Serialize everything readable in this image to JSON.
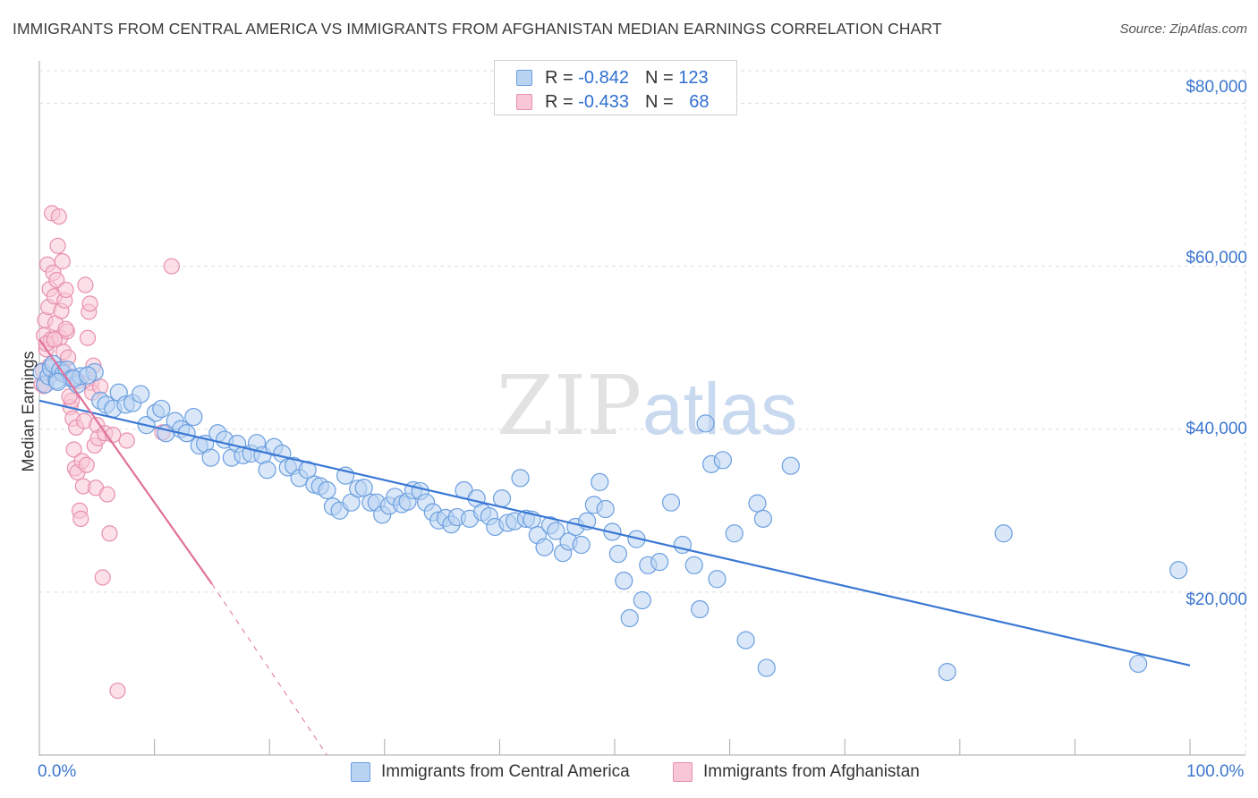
{
  "title": "IMMIGRANTS FROM CENTRAL AMERICA VS IMMIGRANTS FROM AFGHANISTAN MEDIAN EARNINGS CORRELATION CHART",
  "source": "Source: ZipAtlas.com",
  "watermark": {
    "zip": "ZIP",
    "atlas": "atlas"
  },
  "legend": {
    "r_label": "R =",
    "n_label": "N =",
    "series1": {
      "r": "-0.842",
      "n": "123"
    },
    "series2": {
      "r": "-0.433",
      "n": "68"
    }
  },
  "colors": {
    "blue": "#3a78d4",
    "blue_fill": "#b9d3f3",
    "pink": "#e0709a",
    "pink_fill": "#f8c6d6"
  },
  "chart_data": {
    "type": "scatter",
    "title": "IMMIGRANTS FROM CENTRAL AMERICA VS IMMIGRANTS FROM AFGHANISTAN MEDIAN EARNINGS CORRELATION CHART",
    "xlabel": "",
    "ylabel": "Median Earnings",
    "xlim": [
      0,
      100
    ],
    "ylim": [
      0,
      84000
    ],
    "x_tick_labels": [
      "0.0%",
      "100.0%"
    ],
    "y_ticks": [
      20000,
      40000,
      60000,
      80000
    ],
    "y_tick_labels": [
      "$20,000",
      "$40,000",
      "$60,000",
      "$80,000"
    ],
    "grid": true,
    "legend_position": "bottom",
    "series": [
      {
        "name": "Immigrants from Central America",
        "color": "#3a78d4",
        "trend": {
          "x": [
            0,
            100
          ],
          "y": [
            43500,
            11000
          ]
        },
        "points": [
          [
            0.2,
            47000
          ],
          [
            0.5,
            45500
          ],
          [
            0.8,
            46500
          ],
          [
            1.0,
            47500
          ],
          [
            1.2,
            48000
          ],
          [
            1.5,
            46000
          ],
          [
            1.8,
            47200
          ],
          [
            2.1,
            46800
          ],
          [
            2.4,
            47300
          ],
          [
            2.8,
            46200
          ],
          [
            3.3,
            45500
          ],
          [
            3.6,
            46500
          ],
          [
            4.8,
            47000
          ],
          [
            5.3,
            43500
          ],
          [
            5.8,
            43000
          ],
          [
            6.4,
            42500
          ],
          [
            6.9,
            44500
          ],
          [
            7.5,
            43000
          ],
          [
            8.1,
            43200
          ],
          [
            8.8,
            44300
          ],
          [
            9.3,
            40500
          ],
          [
            10.1,
            42000
          ],
          [
            10.6,
            42500
          ],
          [
            11.0,
            39500
          ],
          [
            11.8,
            41000
          ],
          [
            12.3,
            40000
          ],
          [
            12.8,
            39500
          ],
          [
            13.4,
            41500
          ],
          [
            13.9,
            38000
          ],
          [
            14.4,
            38200
          ],
          [
            14.9,
            36500
          ],
          [
            15.5,
            39500
          ],
          [
            16.1,
            38700
          ],
          [
            16.7,
            36500
          ],
          [
            17.2,
            38200
          ],
          [
            17.7,
            36800
          ],
          [
            18.4,
            37000
          ],
          [
            18.9,
            38300
          ],
          [
            19.4,
            36800
          ],
          [
            19.8,
            35000
          ],
          [
            20.4,
            37800
          ],
          [
            21.1,
            37000
          ],
          [
            21.6,
            35300
          ],
          [
            22.1,
            35500
          ],
          [
            22.6,
            34000
          ],
          [
            23.3,
            35000
          ],
          [
            23.9,
            33200
          ],
          [
            24.4,
            33000
          ],
          [
            25.0,
            32500
          ],
          [
            25.5,
            30500
          ],
          [
            26.1,
            30000
          ],
          [
            26.6,
            34300
          ],
          [
            27.1,
            31000
          ],
          [
            27.7,
            32700
          ],
          [
            28.2,
            32800
          ],
          [
            28.8,
            31000
          ],
          [
            29.3,
            31000
          ],
          [
            29.8,
            29500
          ],
          [
            30.4,
            30600
          ],
          [
            30.9,
            31700
          ],
          [
            31.5,
            30800
          ],
          [
            32.0,
            31100
          ],
          [
            32.5,
            32500
          ],
          [
            33.1,
            32400
          ],
          [
            33.6,
            31000
          ],
          [
            34.2,
            29800
          ],
          [
            34.7,
            28800
          ],
          [
            35.3,
            29100
          ],
          [
            35.8,
            28300
          ],
          [
            36.3,
            29200
          ],
          [
            36.9,
            32500
          ],
          [
            37.4,
            29000
          ],
          [
            38.0,
            31500
          ],
          [
            38.5,
            29800
          ],
          [
            39.1,
            29300
          ],
          [
            39.6,
            28000
          ],
          [
            40.2,
            31500
          ],
          [
            40.7,
            28500
          ],
          [
            41.3,
            28700
          ],
          [
            41.8,
            34000
          ],
          [
            42.3,
            29000
          ],
          [
            42.8,
            28900
          ],
          [
            43.3,
            27000
          ],
          [
            43.9,
            25500
          ],
          [
            44.4,
            28200
          ],
          [
            44.9,
            27500
          ],
          [
            45.5,
            24800
          ],
          [
            46.0,
            26200
          ],
          [
            46.6,
            28000
          ],
          [
            47.1,
            25800
          ],
          [
            47.6,
            28700
          ],
          [
            48.2,
            30700
          ],
          [
            48.7,
            33500
          ],
          [
            49.2,
            30200
          ],
          [
            49.8,
            27400
          ],
          [
            50.3,
            24700
          ],
          [
            50.8,
            21400
          ],
          [
            51.3,
            16800
          ],
          [
            51.9,
            26500
          ],
          [
            52.4,
            19000
          ],
          [
            52.9,
            23300
          ],
          [
            53.9,
            23700
          ],
          [
            54.9,
            31000
          ],
          [
            55.9,
            25800
          ],
          [
            56.9,
            23300
          ],
          [
            57.4,
            17900
          ],
          [
            57.9,
            40700
          ],
          [
            58.4,
            35700
          ],
          [
            58.9,
            21600
          ],
          [
            59.4,
            36200
          ],
          [
            60.4,
            27200
          ],
          [
            61.4,
            14100
          ],
          [
            62.4,
            30900
          ],
          [
            62.9,
            29000
          ],
          [
            63.2,
            10700
          ],
          [
            65.3,
            35500
          ],
          [
            78.9,
            10200
          ],
          [
            83.8,
            27200
          ],
          [
            95.5,
            11200
          ],
          [
            99.0,
            22700
          ],
          [
            3.0,
            46200
          ],
          [
            1.6,
            45800
          ],
          [
            4.2,
            46600
          ]
        ]
      },
      {
        "name": "Immigrants from Afghanistan",
        "color": "#e0709a",
        "trend": {
          "x": [
            0,
            15
          ],
          "y": [
            51000,
            21000
          ]
        },
        "trend_dashed": {
          "x": [
            15,
            25
          ],
          "y": [
            21000,
            0
          ]
        },
        "points": [
          [
            0.2,
            45500
          ],
          [
            0.3,
            47200
          ],
          [
            0.4,
            51500
          ],
          [
            0.5,
            53400
          ],
          [
            0.6,
            49800
          ],
          [
            0.7,
            60200
          ],
          [
            0.8,
            55000
          ],
          [
            0.9,
            57200
          ],
          [
            1.0,
            51000
          ],
          [
            1.1,
            66500
          ],
          [
            1.2,
            59200
          ],
          [
            1.3,
            56300
          ],
          [
            1.4,
            53000
          ],
          [
            1.5,
            58300
          ],
          [
            1.6,
            62500
          ],
          [
            1.7,
            66100
          ],
          [
            1.8,
            51200
          ],
          [
            1.9,
            54500
          ],
          [
            2.0,
            47500
          ],
          [
            2.1,
            49500
          ],
          [
            2.2,
            55800
          ],
          [
            2.3,
            57100
          ],
          [
            2.4,
            52000
          ],
          [
            2.5,
            48800
          ],
          [
            2.6,
            46500
          ],
          [
            2.7,
            42700
          ],
          [
            2.8,
            43500
          ],
          [
            2.9,
            41300
          ],
          [
            3.0,
            37500
          ],
          [
            3.1,
            35200
          ],
          [
            3.2,
            40200
          ],
          [
            3.3,
            34700
          ],
          [
            3.4,
            45900
          ],
          [
            3.5,
            30000
          ],
          [
            3.6,
            29000
          ],
          [
            3.7,
            36100
          ],
          [
            3.8,
            33000
          ],
          [
            3.9,
            41000
          ],
          [
            4.0,
            57700
          ],
          [
            4.1,
            35600
          ],
          [
            4.2,
            51200
          ],
          [
            4.3,
            54400
          ],
          [
            4.4,
            55400
          ],
          [
            4.5,
            45700
          ],
          [
            4.6,
            44500
          ],
          [
            4.7,
            47800
          ],
          [
            4.8,
            38000
          ],
          [
            4.9,
            32800
          ],
          [
            5.0,
            40500
          ],
          [
            5.1,
            38900
          ],
          [
            5.3,
            45200
          ],
          [
            5.5,
            21800
          ],
          [
            5.7,
            39500
          ],
          [
            5.9,
            32000
          ],
          [
            6.1,
            27200
          ],
          [
            6.4,
            39300
          ],
          [
            6.8,
            7900
          ],
          [
            7.6,
            38600
          ],
          [
            10.7,
            39600
          ],
          [
            11.5,
            60000
          ],
          [
            0.6,
            50500
          ],
          [
            0.9,
            47800
          ],
          [
            1.3,
            51000
          ],
          [
            1.7,
            46900
          ],
          [
            2.0,
            60600
          ],
          [
            2.3,
            52300
          ],
          [
            2.6,
            44000
          ],
          [
            0.4,
            45300
          ]
        ]
      }
    ]
  }
}
